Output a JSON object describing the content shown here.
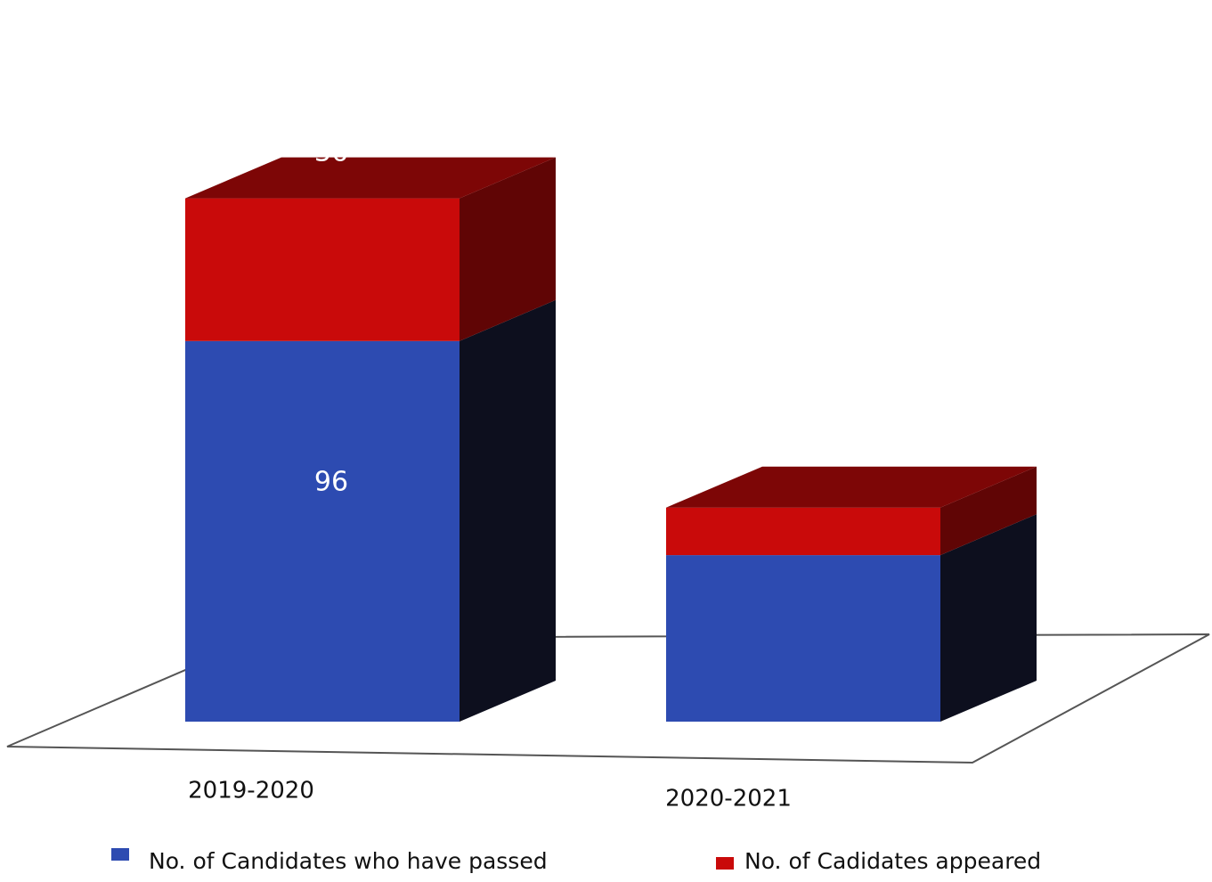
{
  "chart_data": {
    "type": "bar",
    "stacked": true,
    "three_d": true,
    "categories": [
      "2019-2020",
      "2020-2021"
    ],
    "series": [
      {
        "name": "No. of Candidates who have passed",
        "values": [
          96,
          42
        ],
        "color": "#2d4bb1"
      },
      {
        "name": "No. of Cadidates appeared",
        "values": [
          36,
          12
        ],
        "color": "#c90a0a"
      }
    ],
    "data_labels": true,
    "legend_position": "bottom",
    "grid": false
  }
}
